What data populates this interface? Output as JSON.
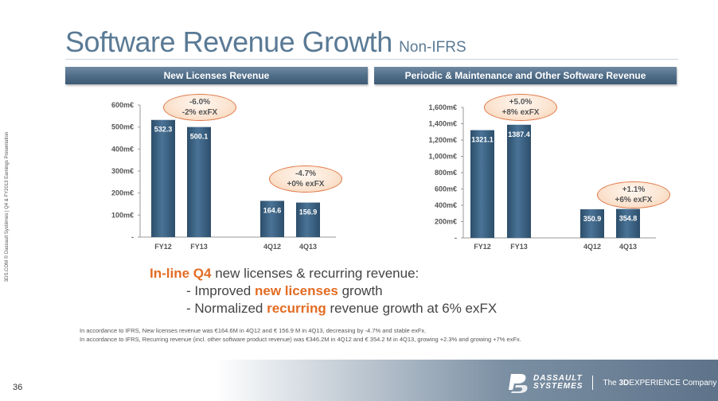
{
  "side_note": "3DS.COM © Dassault Systèmes | Q4 & FY2013 Earnings Presentation",
  "title": {
    "main": "Software Revenue Growth",
    "sub": "Non-IFRS"
  },
  "chart_data": [
    {
      "type": "bar",
      "title": "New Licenses Revenue",
      "categories": [
        "FY12",
        "FY13",
        "",
        "4Q12",
        "4Q13"
      ],
      "values": [
        532.3,
        500.1,
        null,
        164.6,
        156.9
      ],
      "value_labels": [
        "532.3",
        "500.1",
        "",
        "164.6",
        "156.9"
      ],
      "ylim": [
        0,
        600
      ],
      "ytick_values": [
        0,
        100,
        200,
        300,
        400,
        500,
        600
      ],
      "ytick_labels": [
        "-",
        "100m€",
        "200m€",
        "300m€",
        "400m€",
        "500m€",
        "600m€"
      ],
      "bar_color": "#3d6584",
      "annotations": [
        {
          "lines": [
            "-6.0%",
            "-2% exFX"
          ]
        },
        {
          "lines": [
            "-4.7%",
            "+0% exFX"
          ]
        }
      ]
    },
    {
      "type": "bar",
      "title": "Periodic & Maintenance and Other Software Revenue",
      "categories": [
        "FY12",
        "FY13",
        "",
        "4Q12",
        "4Q13"
      ],
      "values": [
        1321.1,
        1387.4,
        null,
        350.9,
        354.8
      ],
      "value_labels": [
        "1321.1",
        "1387.4",
        "",
        "350.9",
        "354.8"
      ],
      "ylim": [
        0,
        1600
      ],
      "ytick_values": [
        0,
        200,
        400,
        600,
        800,
        1000,
        1200,
        1400,
        1600
      ],
      "ytick_labels": [
        "-",
        "200m€",
        "400m€",
        "600m€",
        "800m€",
        "1,000m€",
        "1,200m€",
        "1,400m€",
        "1,600m€"
      ],
      "bar_color": "#3d6584",
      "annotations": [
        {
          "lines": [
            "+5.0%",
            "+8% exFX"
          ]
        },
        {
          "lines": [
            "+1.1%",
            "+6% exFX"
          ]
        }
      ]
    }
  ],
  "commentary": {
    "line1_highlight": "In-line Q4",
    "line1_rest": " new licenses & recurring revenue:",
    "b1_prefix": "- Improved ",
    "b1_highlight": "new licenses",
    "b1_suffix": " growth",
    "b2_prefix": "- Normalized ",
    "b2_highlight": "recurring",
    "b2_suffix": " revenue growth at 6% exFX"
  },
  "footnotes": [
    "In accordance to IFRS, New licenses revenue was €164.6M in 4Q12 and € 156.9 M in 4Q13, decreasing by -4.7% and stable exFx.",
    "In accordance to IFRS, Recurring revenue (incl. other software product revenue) was €346.2M in 4Q12 and € 354.2 M in 4Q13, growing +2.3% and growing +7% exFx."
  ],
  "footer": {
    "page_number": "36",
    "brand_line1": "DASSAULT",
    "brand_line2": "SYSTEMES",
    "tag_prefix": "The ",
    "tag_bold": "3D",
    "tag_suffix": "EXPERIENCE Company"
  }
}
